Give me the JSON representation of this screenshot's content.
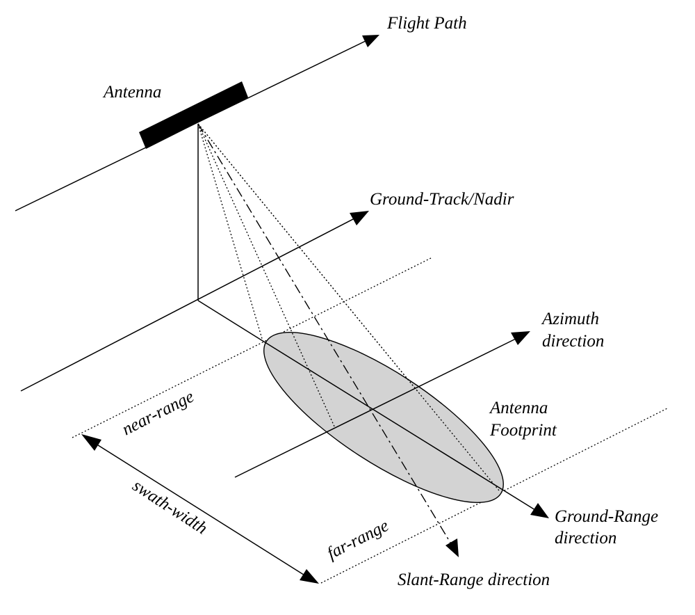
{
  "labels": {
    "flight_path": "Flight Path",
    "antenna": "Antenna",
    "ground_track": "Ground-Track/Nadir",
    "azimuth_1": "Azimuth",
    "azimuth_2": "direction",
    "footprint_1": "Antenna",
    "footprint_2": "Footprint",
    "near_range": "near-range",
    "swath_width": "swath-width",
    "far_range": "far-range",
    "ground_range_1": "Ground-Range",
    "ground_range_2": "direction",
    "slant_range": "Slant-Range direction"
  },
  "colors": {
    "line": "#000000",
    "footprint_fill": "#d3d3d3",
    "background": "#ffffff"
  }
}
